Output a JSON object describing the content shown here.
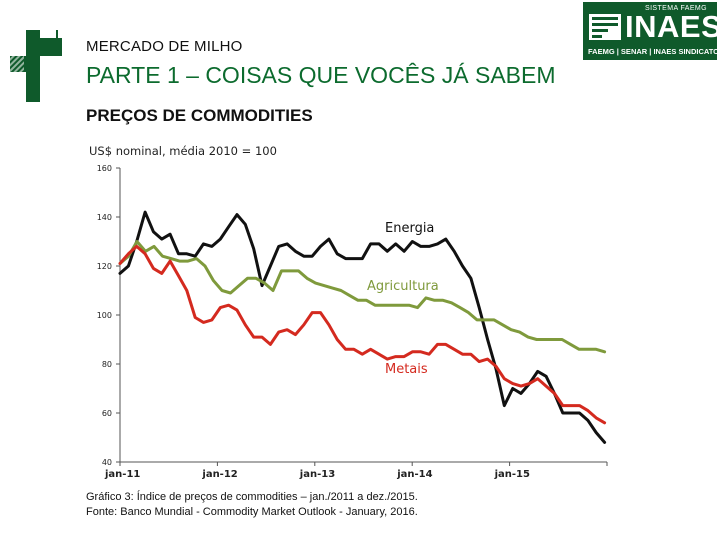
{
  "header": {
    "small_title": "MERCADO DE MILHO",
    "big_title": "PARTE 1 – COISAS QUE VOCÊS JÁ SABEM",
    "section_title": "PREÇOS DE COMMODITIES"
  },
  "logo": {
    "top_text": "SISTEMA FAEMG",
    "word": "INAES",
    "sub": "FAEMG | SENAR | INAES  SINDICATOS"
  },
  "colors": {
    "energy": "#111111",
    "agriculture": "#7f9a3c",
    "metals": "#d42a1f",
    "brand_green": "#0f5a2b"
  },
  "chart_data": {
    "type": "line",
    "subtitle": "US$ nominal, média 2010 = 100",
    "ylim": [
      40,
      160
    ],
    "yticks": [
      "160",
      "140",
      "120",
      "100",
      "80",
      "60",
      "40"
    ],
    "x_tick_labels": [
      "jan-11",
      "jan-12",
      "jan-13",
      "jan-14",
      "jan-15"
    ],
    "x_tick_months": [
      0,
      12,
      24,
      36,
      48
    ],
    "months": 60,
    "series": [
      {
        "name": "Energia",
        "key": "energy",
        "values": [
          117,
          120,
          130,
          142,
          134,
          131,
          133,
          125,
          125,
          124,
          129,
          128,
          131,
          136,
          141,
          137,
          127,
          112,
          120,
          128,
          129,
          126,
          124,
          124,
          128,
          131,
          125,
          123,
          123,
          123,
          129,
          129,
          126,
          129,
          126,
          130,
          128,
          128,
          129,
          131,
          126,
          120,
          115,
          103,
          90,
          78,
          63,
          70,
          68,
          72,
          77,
          75,
          68,
          60,
          60,
          60,
          57,
          52,
          48
        ]
      },
      {
        "name": "Agricultura",
        "key": "agriculture",
        "values": [
          121,
          124,
          130,
          126,
          128,
          124,
          123,
          122,
          122,
          123,
          120,
          114,
          110,
          109,
          112,
          115,
          115,
          113,
          110,
          118,
          118,
          118,
          115,
          113,
          112,
          111,
          110,
          108,
          106,
          106,
          104,
          104,
          104,
          104,
          104,
          103,
          107,
          106,
          106,
          105,
          103,
          101,
          98,
          98,
          98,
          96,
          94,
          93,
          91,
          90,
          90,
          90,
          90,
          88,
          86,
          86,
          86,
          85
        ]
      },
      {
        "name": "Metais",
        "key": "metals",
        "values": [
          121,
          125,
          128,
          125,
          119,
          117,
          122,
          116,
          110,
          99,
          97,
          98,
          103,
          104,
          102,
          96,
          91,
          91,
          88,
          93,
          94,
          92,
          96,
          101,
          101,
          96,
          90,
          86,
          86,
          84,
          86,
          84,
          82,
          83,
          83,
          85,
          85,
          84,
          88,
          88,
          86,
          84,
          84,
          81,
          82,
          79,
          74,
          72,
          71,
          72,
          74,
          71,
          68,
          63,
          63,
          63,
          61,
          58,
          56
        ]
      }
    ],
    "series_labels": [
      {
        "text": "Energia",
        "key": "energy"
      },
      {
        "text": "Agricultura",
        "key": "agriculture"
      },
      {
        "text": "Metais",
        "key": "metals"
      }
    ]
  },
  "caption": {
    "line1": "Gráfico 3: Índice de preços de commodities – jan./2011 a dez./2015.",
    "line2": "Fonte: Banco Mundial - Commodity Market Outlook - January, 2016."
  }
}
